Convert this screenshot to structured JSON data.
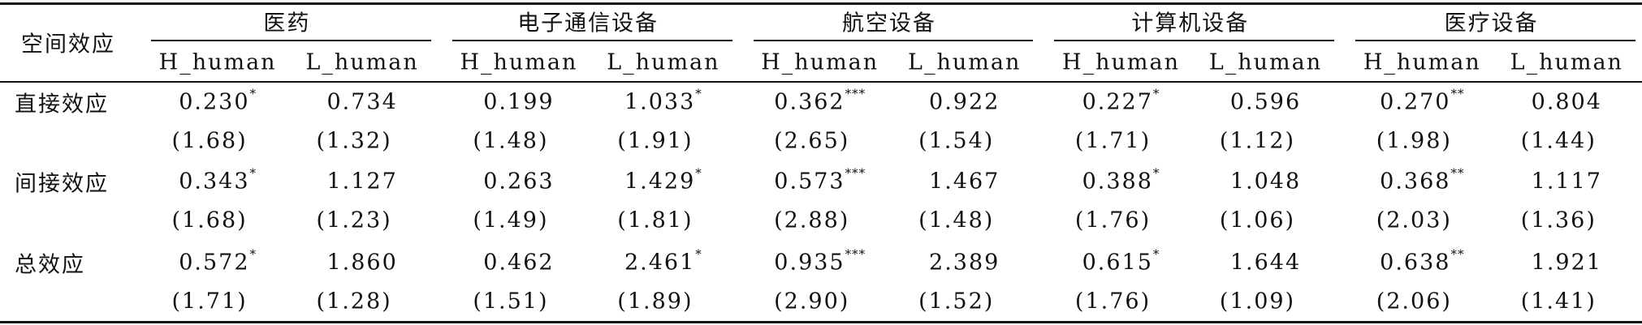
{
  "header": {
    "row_label": "空间效应",
    "groups": [
      {
        "name": "医药",
        "columns": [
          "H_human",
          "L_human"
        ]
      },
      {
        "name": "电子通信设备",
        "columns": [
          "H_human",
          "L_human"
        ]
      },
      {
        "name": "航空设备",
        "columns": [
          "H_human",
          "L_human"
        ]
      },
      {
        "name": "计算机设备",
        "columns": [
          "H_human",
          "L_human"
        ]
      },
      {
        "name": "医疗设备",
        "columns": [
          "H_human",
          "L_human"
        ]
      }
    ]
  },
  "rows": [
    {
      "label": "直接效应",
      "values": [
        {
          "value": "0.230",
          "stars": "*"
        },
        {
          "value": "0.734"
        },
        {
          "value": "0.199"
        },
        {
          "value": "1.033",
          "stars": "*"
        },
        {
          "value": "0.362",
          "stars": "***"
        },
        {
          "value": "0.922"
        },
        {
          "value": "0.227",
          "stars": "*"
        },
        {
          "value": "0.596"
        },
        {
          "value": "0.270",
          "stars": "**"
        },
        {
          "value": "0.804"
        }
      ],
      "t_stats": [
        "(1.68)",
        "(1.32)",
        "(1.48)",
        "(1.91)",
        "(2.65)",
        "(1.54)",
        "(1.71)",
        "(1.12)",
        "(1.98)",
        "(1.44)"
      ]
    },
    {
      "label": "间接效应",
      "values": [
        {
          "value": "0.343",
          "stars": "*"
        },
        {
          "value": "1.127"
        },
        {
          "value": "0.263"
        },
        {
          "value": "1.429",
          "stars": "*"
        },
        {
          "value": "0.573",
          "stars": "***"
        },
        {
          "value": "1.467"
        },
        {
          "value": "0.388",
          "stars": "*"
        },
        {
          "value": "1.048"
        },
        {
          "value": "0.368",
          "stars": "**"
        },
        {
          "value": "1.117"
        }
      ],
      "t_stats": [
        "(1.68)",
        "(1.23)",
        "(1.49)",
        "(1.81)",
        "(2.88)",
        "(1.48)",
        "(1.76)",
        "(1.06)",
        "(2.03)",
        "(1.36)"
      ]
    },
    {
      "label": "总效应",
      "values": [
        {
          "value": "0.572",
          "stars": "*"
        },
        {
          "value": "1.860"
        },
        {
          "value": "0.462"
        },
        {
          "value": "2.461",
          "stars": "*"
        },
        {
          "value": "0.935",
          "stars": "***"
        },
        {
          "value": "2.389"
        },
        {
          "value": "0.615",
          "stars": "*"
        },
        {
          "value": "1.644"
        },
        {
          "value": "0.638",
          "stars": "**"
        },
        {
          "value": "1.921"
        }
      ],
      "t_stats": [
        "(1.71)",
        "(1.28)",
        "(1.51)",
        "(1.89)",
        "(2.90)",
        "(1.52)",
        "(1.76)",
        "(1.09)",
        "(2.06)",
        "(1.41)"
      ]
    }
  ]
}
